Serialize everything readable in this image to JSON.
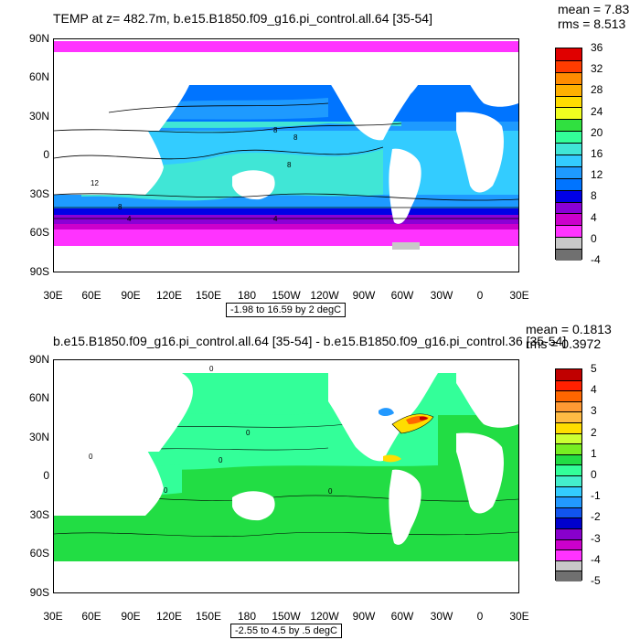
{
  "panels": [
    {
      "title": "TEMP at z= 482.7m, b.e15.B1850.f09_g16.pi_control.all.64 [35-54]",
      "mean": "mean = 7.83",
      "rms": "rms = 8.513",
      "range": "-1.98 to 16.59 by 2 degC",
      "lat_labels": [
        "90N",
        "60N",
        "30N",
        "0",
        "30S",
        "60S",
        "90S"
      ],
      "lon_labels": [
        "30E",
        "60E",
        "90E",
        "120E",
        "150E",
        "180",
        "150W",
        "120W",
        "90W",
        "60W",
        "30W",
        "0",
        "30E"
      ],
      "colorbar_labels": [
        "36",
        "32",
        "28",
        "24",
        "20",
        "16",
        "12",
        "8",
        "4",
        "0",
        "-4"
      ],
      "colorbar_colors": [
        "#e00000",
        "#ff3c00",
        "#ff8c00",
        "#ffb000",
        "#ffdc00",
        "#f0ff20",
        "#30e040",
        "#33ff99",
        "#40e6d6",
        "#33ccff",
        "#1e9aff",
        "#0074ff",
        "#0000e6",
        "#8a00d6",
        "#cc00cc",
        "#ff33ff",
        "#c8c8c8",
        "#707070"
      ],
      "contour_labels": [
        "8",
        "12",
        "8",
        "8",
        "8",
        "4",
        "4"
      ]
    },
    {
      "title": "b.e15.B1850.f09_g16.pi_control.all.64 [35-54] - b.e15.B1850.f09_g16.pi_control.36 [35-54]",
      "mean": "mean = 0.1813",
      "rms": "rms = 0.3972",
      "range": "-2.55 to 4.5 by .5 degC",
      "lat_labels": [
        "90N",
        "60N",
        "30N",
        "0",
        "30S",
        "60S",
        "90S"
      ],
      "lon_labels": [
        "30E",
        "60E",
        "90E",
        "120E",
        "150E",
        "180",
        "150W",
        "120W",
        "90W",
        "60W",
        "30W",
        "0",
        "30E"
      ],
      "colorbar_labels": [
        "5",
        "4",
        "3",
        "2",
        "1",
        "0",
        "-1",
        "-2",
        "-3",
        "-4",
        "-5"
      ],
      "colorbar_colors": [
        "#c00000",
        "#ff2000",
        "#ff6600",
        "#ff9933",
        "#ffbb44",
        "#ffdd00",
        "#ccff33",
        "#77ee22",
        "#22dd44",
        "#33ff99",
        "#44eecc",
        "#33ccff",
        "#2299ff",
        "#1155ee",
        "#0000cc",
        "#8800cc",
        "#cc00cc",
        "#ff33ff",
        "#c8c8c8",
        "#707070"
      ],
      "contour_labels": [
        "0",
        "0",
        "0",
        "0",
        "0",
        "0"
      ]
    }
  ]
}
